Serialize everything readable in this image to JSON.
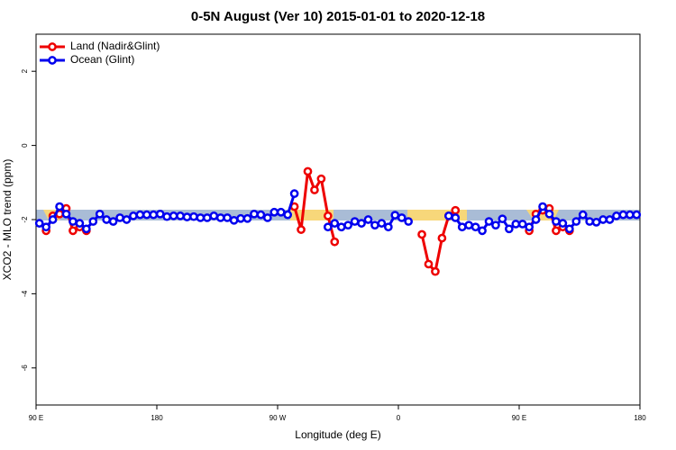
{
  "chart_data": {
    "type": "line",
    "title": "0-5N August (Ver 10)   2015-01-01 to 2020-12-18",
    "x_label": "Longitude (deg E)",
    "y_label": "XCO2 - MLO trend (ppm)",
    "x": [
      92.5,
      97.5,
      102.5,
      107.5,
      112.5,
      117.5,
      122.5,
      127.5,
      132.5,
      137.5,
      142.5,
      147.5,
      152.5,
      157.5,
      162.5,
      167.5,
      172.5,
      177.5,
      182.5,
      187.5,
      192.5,
      197.5,
      202.5,
      207.5,
      212.5,
      217.5,
      222.5,
      227.5,
      232.5,
      237.5,
      242.5,
      247.5,
      252.5,
      257.5,
      262.5,
      267.5,
      272.5,
      277.5,
      282.5,
      287.5,
      292.5,
      297.5,
      302.5,
      307.5,
      312.5,
      317.5,
      322.5,
      327.5,
      332.5,
      337.5,
      342.5,
      347.5,
      352.5,
      357.5,
      362.5,
      367.5,
      372.5,
      377.5,
      382.5,
      387.5,
      392.5,
      397.5,
      402.5,
      407.5,
      412.5,
      417.5,
      422.5,
      427.5,
      432.5,
      437.5,
      442.5,
      447.5,
      452.5,
      457.5,
      462.5,
      467.5,
      472.5,
      477.5,
      482.5,
      487.5,
      492.5,
      497.5,
      502.5,
      507.5,
      512.5,
      517.5,
      522.5,
      527.5,
      532.5,
      537.5
    ],
    "series": [
      {
        "name": "Land (Nadir&Glint)",
        "color": "#ee0000",
        "values": [
          null,
          -2.3,
          -1.9,
          -1.85,
          -1.7,
          -2.3,
          -2.2,
          -2.3,
          null,
          null,
          null,
          null,
          null,
          null,
          null,
          null,
          null,
          null,
          null,
          null,
          null,
          null,
          null,
          null,
          null,
          null,
          null,
          null,
          null,
          null,
          null,
          null,
          null,
          null,
          null,
          null,
          null,
          null,
          -1.65,
          -2.27,
          -0.7,
          -1.2,
          -0.9,
          -1.9,
          -2.6,
          null,
          null,
          null,
          null,
          null,
          null,
          null,
          null,
          null,
          null,
          null,
          null,
          -2.4,
          -3.2,
          -3.4,
          -2.5,
          -1.9,
          -1.75,
          null,
          null,
          null,
          null,
          null,
          null,
          null,
          null,
          null,
          null,
          -2.3,
          -1.85,
          -1.75,
          -1.7,
          -2.3,
          -2.2,
          -2.3,
          null,
          null,
          null,
          null,
          null,
          null,
          null,
          null,
          null,
          null
        ]
      },
      {
        "name": "Ocean (Glint)",
        "color": "#0000ee",
        "values": [
          -2.1,
          -2.2,
          -2.0,
          -1.65,
          -1.85,
          -2.05,
          -2.1,
          -2.25,
          -2.05,
          -1.85,
          -2.0,
          -2.05,
          -1.95,
          -2.0,
          -1.9,
          -1.87,
          -1.87,
          -1.87,
          -1.85,
          -1.92,
          -1.9,
          -1.9,
          -1.93,
          -1.92,
          -1.95,
          -1.95,
          -1.9,
          -1.95,
          -1.95,
          -2.02,
          -1.97,
          -1.97,
          -1.85,
          -1.87,
          -1.95,
          -1.8,
          -1.8,
          -1.87,
          -1.3,
          null,
          null,
          null,
          null,
          -2.2,
          -2.1,
          -2.2,
          -2.15,
          -2.05,
          -2.1,
          -2.0,
          -2.15,
          -2.1,
          -2.2,
          -1.88,
          -1.95,
          -2.05,
          null,
          null,
          null,
          null,
          null,
          -1.9,
          -1.95,
          -2.2,
          -2.15,
          -2.2,
          -2.3,
          -2.05,
          -2.15,
          -1.98,
          -2.25,
          -2.12,
          -2.12,
          -2.2,
          -2.0,
          -1.65,
          -1.85,
          -2.05,
          -2.1,
          -2.25,
          -2.05,
          -1.87,
          -2.05,
          -2.07,
          -2.0,
          -2.0,
          -1.9,
          -1.87,
          -1.87,
          -1.87
        ]
      }
    ],
    "xlim": [
      90,
      540
    ],
    "xticks": [
      {
        "value": 90,
        "label": "90 E"
      },
      180,
      {
        "value": 270,
        "label": "90 W"
      },
      {
        "value": 360,
        "label": "0"
      },
      {
        "value": 450,
        "label": "90 E"
      },
      {
        "value": 540,
        "label": "180"
      }
    ],
    "ylim": [
      -7,
      3
    ],
    "yticks": [
      2,
      0,
      -2,
      -4,
      -6
    ],
    "legend": "top-left"
  }
}
